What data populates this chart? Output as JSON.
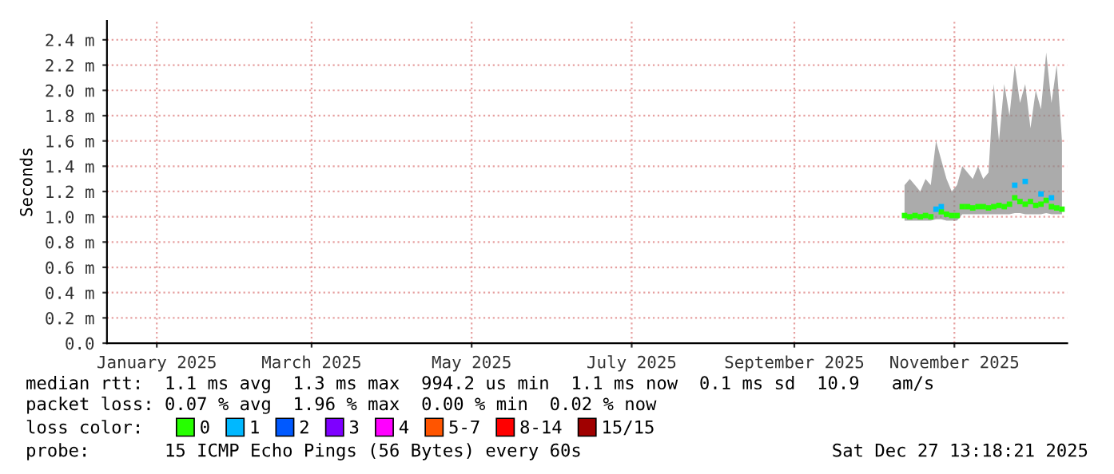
{
  "chart_data": {
    "type": "scatter",
    "ylabel": "Seconds",
    "legend_title": "loss color:",
    "legend": "bottom",
    "grid": true,
    "marker": "square",
    "xlim": [
      "2024-12-28",
      "2025-12-29"
    ],
    "xticks": [
      {
        "value": "2025-01-16",
        "label": "January 2025"
      },
      {
        "value": "2025-03-16",
        "label": "March 2025"
      },
      {
        "value": "2025-05-16",
        "label": "May 2025"
      },
      {
        "value": "2025-07-16",
        "label": "July 2025"
      },
      {
        "value": "2025-09-16",
        "label": "September 2025"
      },
      {
        "value": "2025-11-16",
        "label": "November 2025"
      }
    ],
    "ylim": [
      0,
      2.55
    ],
    "yticks": [
      {
        "value": 0,
        "label": "0.0"
      },
      {
        "value": 0.2,
        "label": "0.2 m"
      },
      {
        "value": 0.4,
        "label": "0.4 m"
      },
      {
        "value": 0.6,
        "label": "0.6 m"
      },
      {
        "value": 0.8,
        "label": "0.8 m"
      },
      {
        "value": 1.0,
        "label": "1.0 m"
      },
      {
        "value": 1.2,
        "label": "1.2 m"
      },
      {
        "value": 1.4,
        "label": "1.4 m"
      },
      {
        "value": 1.6,
        "label": "1.6 m"
      },
      {
        "value": 1.8,
        "label": "1.8 m"
      },
      {
        "value": 2.0,
        "label": "2.0 m"
      },
      {
        "value": 2.2,
        "label": "2.2 m"
      },
      {
        "value": 2.4,
        "label": "2.4 m"
      }
    ],
    "series": [
      {
        "name": "0",
        "color": "#26ff00",
        "x": [
          "2025-10-28",
          "2025-10-30",
          "2025-11-01",
          "2025-11-03",
          "2025-11-05",
          "2025-11-07",
          "2025-11-09",
          "2025-11-11",
          "2025-11-13",
          "2025-11-15",
          "2025-11-17",
          "2025-11-19",
          "2025-11-21",
          "2025-11-23",
          "2025-11-25",
          "2025-11-27",
          "2025-11-29",
          "2025-12-01",
          "2025-12-03",
          "2025-12-05",
          "2025-12-07",
          "2025-12-09",
          "2025-12-11",
          "2025-12-13",
          "2025-12-15",
          "2025-12-17",
          "2025-12-19",
          "2025-12-21",
          "2025-12-23",
          "2025-12-25",
          "2025-12-27"
        ],
        "values": [
          1.01,
          1.0,
          1.01,
          1.0,
          1.01,
          1.0,
          null,
          1.04,
          1.02,
          1.01,
          1.01,
          1.08,
          1.08,
          1.07,
          1.08,
          1.08,
          1.07,
          1.08,
          1.09,
          1.08,
          1.1,
          1.15,
          1.12,
          1.1,
          1.12,
          1.09,
          1.1,
          1.13,
          1.08,
          1.07,
          1.06
        ],
        "lower": [
          0.97,
          0.97,
          0.97,
          0.97,
          0.97,
          0.97,
          0.98,
          0.98,
          0.97,
          0.97,
          0.97,
          1.02,
          1.02,
          1.02,
          1.02,
          1.02,
          1.02,
          1.02,
          1.02,
          1.02,
          1.02,
          1.03,
          1.03,
          1.02,
          1.02,
          1.02,
          1.02,
          1.03,
          1.02,
          1.02,
          1.02
        ],
        "upper": [
          1.25,
          1.3,
          1.25,
          1.2,
          1.3,
          1.25,
          1.6,
          1.45,
          1.3,
          1.2,
          1.25,
          1.4,
          1.35,
          1.3,
          1.4,
          1.3,
          1.35,
          2.05,
          1.6,
          2.05,
          1.8,
          2.2,
          1.9,
          2.05,
          1.7,
          2.0,
          1.85,
          2.3,
          1.9,
          2.2,
          1.6
        ]
      },
      {
        "name": "1",
        "color": "#00b8ff",
        "x": [
          "2025-11-09",
          "2025-11-11",
          "2025-12-09",
          "2025-12-13",
          "2025-12-19",
          "2025-12-23"
        ],
        "values": [
          1.06,
          1.08,
          1.25,
          1.28,
          1.18,
          1.15
        ]
      },
      {
        "name": "2",
        "color": "#0059ff"
      },
      {
        "name": "3",
        "color": "#7e00ff"
      },
      {
        "name": "4",
        "color": "#ff00ff"
      },
      {
        "name": "5-7",
        "color": "#ff5500"
      },
      {
        "name": "8-14",
        "color": "#ff0000"
      },
      {
        "name": "15/15",
        "color": "#a00000"
      }
    ],
    "annotations": [
      "median rtt:  1.1 ms avg  1.3 ms max  994.2 us min  1.1 ms now  0.1 ms sd  10.9   am/s",
      "packet loss: 0.07 % avg  1.96 % max  0.00 % min  0.02 % now",
      "probe:       15 ICMP Echo Pings (56 Bytes) every 60s",
      "Sat Dec 27 13:18:21 2025"
    ]
  }
}
